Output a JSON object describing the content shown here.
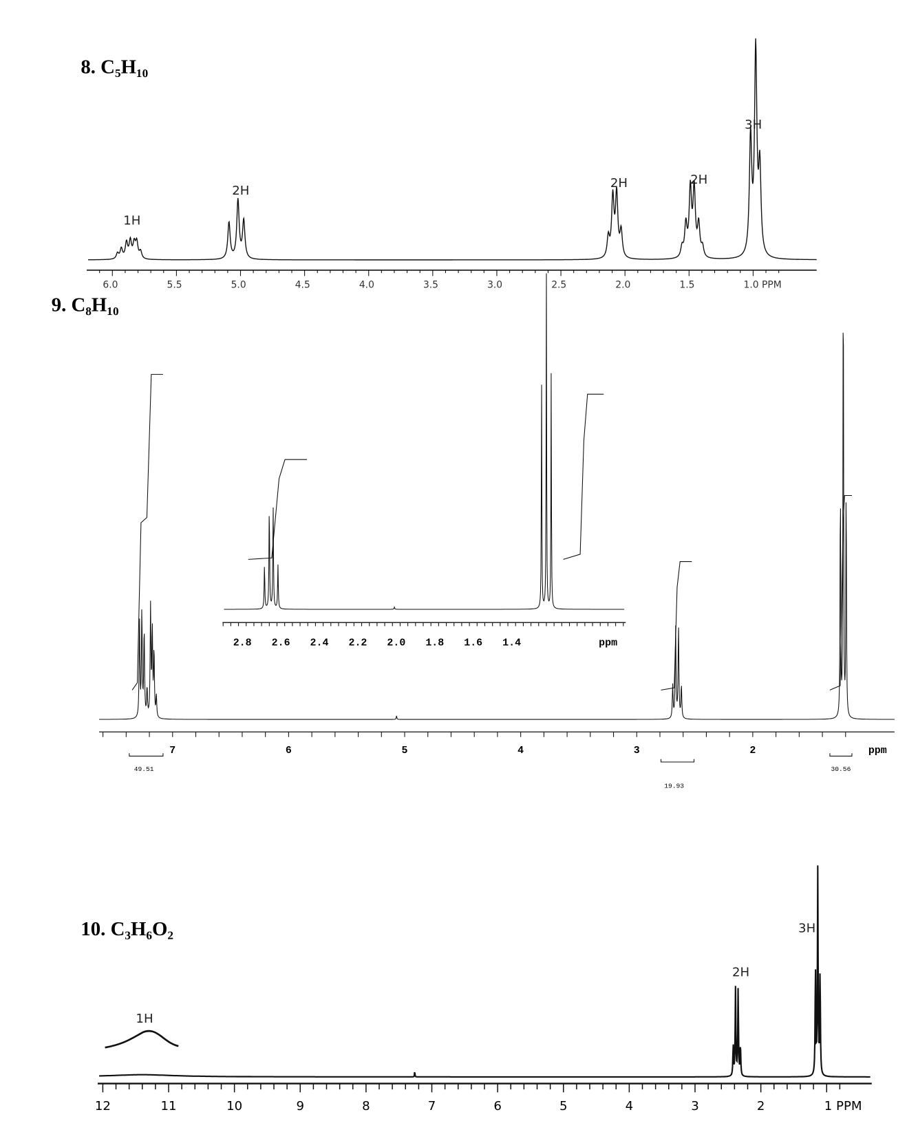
{
  "spectra": [
    {
      "title": "8. C₅H₁₀",
      "x_ticks": [
        "6.0",
        "5.5",
        "5.0",
        "4.5",
        "4.0",
        "3.5",
        "3.0",
        "2.5",
        "2.0",
        "1.5",
        "1.0 PPM"
      ],
      "peak_labels": [
        "1H",
        "2H",
        "2H",
        "2H",
        "3H"
      ]
    },
    {
      "title": "9. C₈H₁₀",
      "x_ticks": [
        "7",
        "6",
        "5",
        "4",
        "3",
        "2",
        "ppm"
      ],
      "inset_ticks": [
        "2.8",
        "2.6",
        "2.4",
        "2.2",
        "2.0",
        "1.8",
        "1.6",
        "1.4",
        "ppm"
      ],
      "integrals": [
        "49.51",
        "19.93",
        "30.56"
      ]
    },
    {
      "title": "10. C₃H₆O₂",
      "x_ticks": [
        "12",
        "11",
        "10",
        "9",
        "8",
        "7",
        "6",
        "5",
        "4",
        "3",
        "2",
        "1 PPM"
      ],
      "peak_labels": [
        "1H",
        "2H",
        "3H"
      ]
    }
  ]
}
